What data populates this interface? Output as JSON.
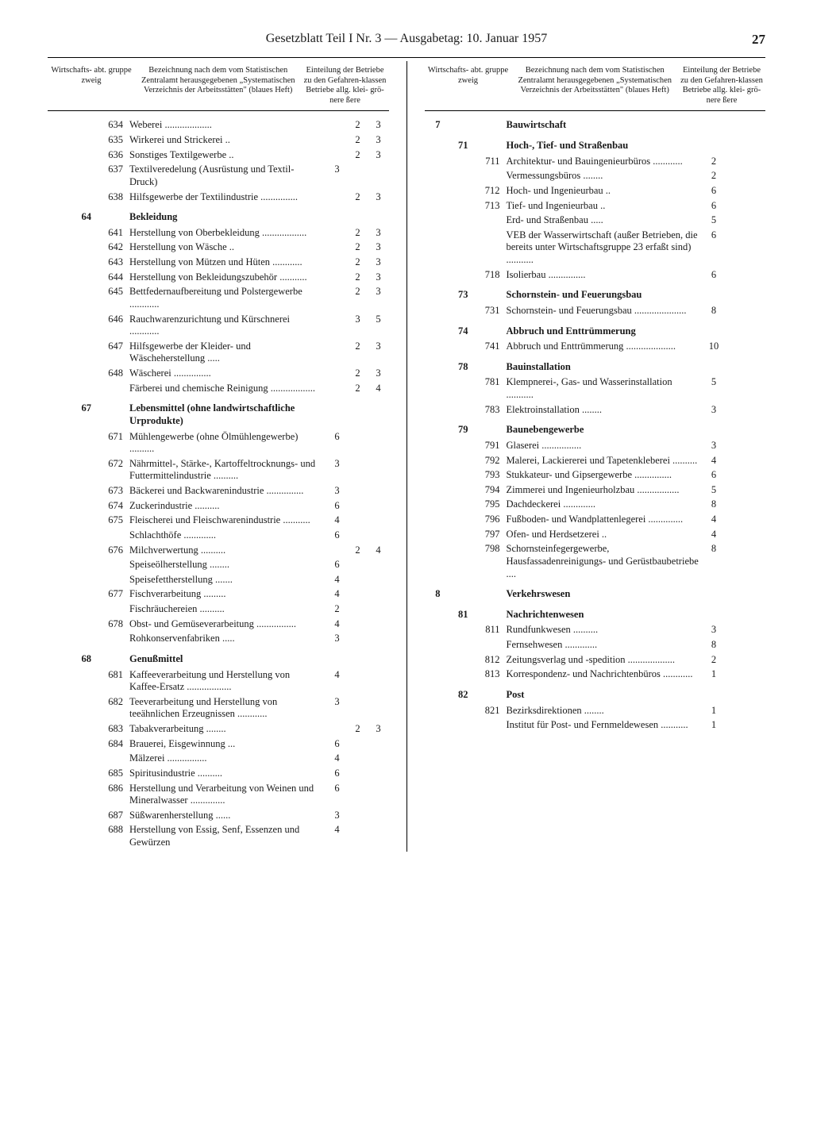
{
  "header": {
    "title": "Gesetzblatt Teil I Nr. 3 — Ausgabetag: 10. Januar 1957",
    "page_number": "27"
  },
  "column_headers": {
    "code": "Wirtschafts-\nabt. gruppe zweig",
    "desc": "Bezeichnung nach dem vom Statistischen Zentralamt herausgegebenen „Systematischen Verzeichnis der Arbeitsstätten\" (blaues Heft)",
    "class": "Einteilung der Betriebe zu den Gefahren-klassen Betriebe allg. klei- grö-nere ßere"
  },
  "left_rows": [
    {
      "abt": "",
      "grp": "",
      "zwg": "634",
      "desc": "Weberei ...................",
      "v1": "",
      "v2": "2",
      "v3": "3"
    },
    {
      "abt": "",
      "grp": "",
      "zwg": "635",
      "desc": "Wirkerei und Strickerei ..",
      "v1": "",
      "v2": "2",
      "v3": "3"
    },
    {
      "abt": "",
      "grp": "",
      "zwg": "636",
      "desc": "Sonstiges Textilgewerbe ..",
      "v1": "",
      "v2": "2",
      "v3": "3"
    },
    {
      "abt": "",
      "grp": "",
      "zwg": "637",
      "desc": "Textilveredelung (Ausrüstung und Textil-Druck)",
      "v1": "3",
      "v2": "",
      "v3": ""
    },
    {
      "abt": "",
      "grp": "",
      "zwg": "638",
      "desc": "Hilfsgewerbe der Textilindustrie ...............",
      "v1": "",
      "v2": "2",
      "v3": "3"
    },
    {
      "abt": "",
      "grp": "64",
      "zwg": "",
      "desc": "Bekleidung",
      "bold": true
    },
    {
      "abt": "",
      "grp": "",
      "zwg": "641",
      "desc": "Herstellung von Oberbekleidung ..................",
      "v1": "",
      "v2": "2",
      "v3": "3"
    },
    {
      "abt": "",
      "grp": "",
      "zwg": "642",
      "desc": "Herstellung von Wäsche ..",
      "v1": "",
      "v2": "2",
      "v3": "3"
    },
    {
      "abt": "",
      "grp": "",
      "zwg": "643",
      "desc": "Herstellung von Mützen und Hüten ............",
      "v1": "",
      "v2": "2",
      "v3": "3"
    },
    {
      "abt": "",
      "grp": "",
      "zwg": "644",
      "desc": "Herstellung von Bekleidungszubehör ...........",
      "v1": "",
      "v2": "2",
      "v3": "3"
    },
    {
      "abt": "",
      "grp": "",
      "zwg": "645",
      "desc": "Bettfedernaufbereitung und Polstergewerbe ............",
      "v1": "",
      "v2": "2",
      "v3": "3"
    },
    {
      "abt": "",
      "grp": "",
      "zwg": "646",
      "desc": "Rauchwarenzurichtung und Kürschnerei ............",
      "v1": "",
      "v2": "3",
      "v3": "5"
    },
    {
      "abt": "",
      "grp": "",
      "zwg": "647",
      "desc": "Hilfsgewerbe der Kleider- und Wäscheherstellung .....",
      "v1": "",
      "v2": "2",
      "v3": "3"
    },
    {
      "abt": "",
      "grp": "",
      "zwg": "648",
      "desc": "Wäscherei ...............",
      "v1": "",
      "v2": "2",
      "v3": "3"
    },
    {
      "abt": "",
      "grp": "",
      "zwg": "",
      "desc": "Färberei und chemische Reinigung ..................",
      "v1": "",
      "v2": "2",
      "v3": "4"
    },
    {
      "abt": "",
      "grp": "67",
      "zwg": "",
      "desc": "Lebensmittel (ohne landwirtschaftliche Urprodukte)",
      "bold": true
    },
    {
      "abt": "",
      "grp": "",
      "zwg": "671",
      "desc": "Mühlengewerbe (ohne Ölmühlengewerbe) ..........",
      "v1": "6",
      "v2": "",
      "v3": ""
    },
    {
      "abt": "",
      "grp": "",
      "zwg": "672",
      "desc": "Nährmittel-, Stärke-, Kartoffeltrocknungs- und Futtermittelindustrie ..........",
      "v1": "3",
      "v2": "",
      "v3": ""
    },
    {
      "abt": "",
      "grp": "",
      "zwg": "673",
      "desc": "Bäckerei und Backwarenindustrie ...............",
      "v1": "3",
      "v2": "",
      "v3": ""
    },
    {
      "abt": "",
      "grp": "",
      "zwg": "674",
      "desc": "Zuckerindustrie ..........",
      "v1": "6",
      "v2": "",
      "v3": ""
    },
    {
      "abt": "",
      "grp": "",
      "zwg": "675",
      "desc": "Fleischerei und Fleischwarenindustrie ...........",
      "v1": "4",
      "v2": "",
      "v3": ""
    },
    {
      "abt": "",
      "grp": "",
      "zwg": "",
      "desc": "Schlachthöfe .............",
      "v1": "6",
      "v2": "",
      "v3": ""
    },
    {
      "abt": "",
      "grp": "",
      "zwg": "676",
      "desc": "Milchverwertung ..........",
      "v1": "",
      "v2": "2",
      "v3": "4"
    },
    {
      "abt": "",
      "grp": "",
      "zwg": "",
      "desc": "Speiseölherstellung ........",
      "v1": "6",
      "v2": "",
      "v3": ""
    },
    {
      "abt": "",
      "grp": "",
      "zwg": "",
      "desc": "Speisefettherstellung .......",
      "v1": "4",
      "v2": "",
      "v3": ""
    },
    {
      "abt": "",
      "grp": "",
      "zwg": "677",
      "desc": "Fischverarbeitung .........",
      "v1": "4",
      "v2": "",
      "v3": ""
    },
    {
      "abt": "",
      "grp": "",
      "zwg": "",
      "desc": "Fischräuchereien ..........",
      "v1": "2",
      "v2": "",
      "v3": ""
    },
    {
      "abt": "",
      "grp": "",
      "zwg": "678",
      "desc": "Obst- und Gemüseverarbeitung ................",
      "v1": "4",
      "v2": "",
      "v3": ""
    },
    {
      "abt": "",
      "grp": "",
      "zwg": "",
      "desc": "Rohkonservenfabriken .....",
      "v1": "3",
      "v2": "",
      "v3": ""
    },
    {
      "abt": "",
      "grp": "68",
      "zwg": "",
      "desc": "Genußmittel",
      "bold": true
    },
    {
      "abt": "",
      "grp": "",
      "zwg": "681",
      "desc": "Kaffeeverarbeitung und Herstellung von Kaffee-Ersatz ..................",
      "v1": "4",
      "v2": "",
      "v3": ""
    },
    {
      "abt": "",
      "grp": "",
      "zwg": "682",
      "desc": "Teeverarbeitung und Herstellung von teeähnlichen Erzeugnissen ............",
      "v1": "3",
      "v2": "",
      "v3": ""
    },
    {
      "abt": "",
      "grp": "",
      "zwg": "683",
      "desc": "Tabakverarbeitung ........",
      "v1": "",
      "v2": "2",
      "v3": "3"
    },
    {
      "abt": "",
      "grp": "",
      "zwg": "684",
      "desc": "Brauerei, Eisgewinnung ...",
      "v1": "6",
      "v2": "",
      "v3": ""
    },
    {
      "abt": "",
      "grp": "",
      "zwg": "",
      "desc": "Mälzerei ................",
      "v1": "4",
      "v2": "",
      "v3": ""
    },
    {
      "abt": "",
      "grp": "",
      "zwg": "685",
      "desc": "Spiritusindustrie ..........",
      "v1": "6",
      "v2": "",
      "v3": ""
    },
    {
      "abt": "",
      "grp": "",
      "zwg": "686",
      "desc": "Herstellung und Verarbeitung von Weinen und Mineralwasser ..............",
      "v1": "6",
      "v2": "",
      "v3": ""
    },
    {
      "abt": "",
      "grp": "",
      "zwg": "687",
      "desc": "Süßwarenherstellung ......",
      "v1": "3",
      "v2": "",
      "v3": ""
    },
    {
      "abt": "",
      "grp": "",
      "zwg": "688",
      "desc": "Herstellung von Essig, Senf, Essenzen und Gewürzen",
      "v1": "4",
      "v2": "",
      "v3": ""
    }
  ],
  "right_rows": [
    {
      "abt": "7",
      "grp": "",
      "zwg": "",
      "desc": "Bauwirtschaft",
      "bold": true
    },
    {
      "abt": "",
      "grp": "71",
      "zwg": "",
      "desc": "Hoch-, Tief- und Straßenbau",
      "bold": true
    },
    {
      "abt": "",
      "grp": "",
      "zwg": "711",
      "desc": "Architektur- und Bauingenieurbüros ............",
      "v1": "2",
      "v2": "",
      "v3": ""
    },
    {
      "abt": "",
      "grp": "",
      "zwg": "",
      "desc": "Vermessungsbüros ........",
      "v1": "2",
      "v2": "",
      "v3": ""
    },
    {
      "abt": "",
      "grp": "",
      "zwg": "712",
      "desc": "Hoch- und Ingenieurbau ..",
      "v1": "6",
      "v2": "",
      "v3": ""
    },
    {
      "abt": "",
      "grp": "",
      "zwg": "713",
      "desc": "Tief- und Ingenieurbau ..",
      "v1": "6",
      "v2": "",
      "v3": ""
    },
    {
      "abt": "",
      "grp": "",
      "zwg": "",
      "desc": "Erd- und Straßenbau .....",
      "v1": "5",
      "v2": "",
      "v3": ""
    },
    {
      "abt": "",
      "grp": "",
      "zwg": "",
      "desc": "VEB der Wasserwirtschaft (außer Betrieben, die bereits unter Wirtschaftsgruppe 23 erfaßt sind) ...........",
      "v1": "6",
      "v2": "",
      "v3": ""
    },
    {
      "abt": "",
      "grp": "",
      "zwg": "718",
      "desc": "Isolierbau ...............",
      "v1": "6",
      "v2": "",
      "v3": ""
    },
    {
      "abt": "",
      "grp": "73",
      "zwg": "",
      "desc": "Schornstein- und Feuerungsbau",
      "bold": true
    },
    {
      "abt": "",
      "grp": "",
      "zwg": "731",
      "desc": "Schornstein- und Feuerungsbau .....................",
      "v1": "8",
      "v2": "",
      "v3": ""
    },
    {
      "abt": "",
      "grp": "74",
      "zwg": "",
      "desc": "Abbruch und Enttrümmerung",
      "bold": true
    },
    {
      "abt": "",
      "grp": "",
      "zwg": "741",
      "desc": "Abbruch und Enttrümmerung ....................",
      "v1": "10",
      "v2": "",
      "v3": ""
    },
    {
      "abt": "",
      "grp": "78",
      "zwg": "",
      "desc": "Bauinstallation",
      "bold": true
    },
    {
      "abt": "",
      "grp": "",
      "zwg": "781",
      "desc": "Klempnerei-, Gas- und Wasserinstallation ...........",
      "v1": "5",
      "v2": "",
      "v3": ""
    },
    {
      "abt": "",
      "grp": "",
      "zwg": "783",
      "desc": "Elektroinstallation ........",
      "v1": "3",
      "v2": "",
      "v3": ""
    },
    {
      "abt": "",
      "grp": "79",
      "zwg": "",
      "desc": "Baunebengewerbe",
      "bold": true
    },
    {
      "abt": "",
      "grp": "",
      "zwg": "791",
      "desc": "Glaserei ................",
      "v1": "3",
      "v2": "",
      "v3": ""
    },
    {
      "abt": "",
      "grp": "",
      "zwg": "792",
      "desc": "Malerei, Lackiererei und Tapetenkleberei ..........",
      "v1": "4",
      "v2": "",
      "v3": ""
    },
    {
      "abt": "",
      "grp": "",
      "zwg": "793",
      "desc": "Stukkateur- und Gipsergewerbe ...............",
      "v1": "6",
      "v2": "",
      "v3": ""
    },
    {
      "abt": "",
      "grp": "",
      "zwg": "794",
      "desc": "Zimmerei und Ingenieurholzbau .................",
      "v1": "5",
      "v2": "",
      "v3": ""
    },
    {
      "abt": "",
      "grp": "",
      "zwg": "795",
      "desc": "Dachdeckerei .............",
      "v1": "8",
      "v2": "",
      "v3": ""
    },
    {
      "abt": "",
      "grp": "",
      "zwg": "796",
      "desc": "Fußboden- und Wandplattenlegerei ..............",
      "v1": "4",
      "v2": "",
      "v3": ""
    },
    {
      "abt": "",
      "grp": "",
      "zwg": "797",
      "desc": "Ofen- und Herdsetzerei ..",
      "v1": "4",
      "v2": "",
      "v3": ""
    },
    {
      "abt": "",
      "grp": "",
      "zwg": "798",
      "desc": "Schornsteinfegergewerbe, Hausfassadenreinigungs- und Gerüstbaubetriebe ....",
      "v1": "8",
      "v2": "",
      "v3": ""
    },
    {
      "abt": "8",
      "grp": "",
      "zwg": "",
      "desc": "Verkehrswesen",
      "bold": true
    },
    {
      "abt": "",
      "grp": "81",
      "zwg": "",
      "desc": "Nachrichtenwesen",
      "bold": true
    },
    {
      "abt": "",
      "grp": "",
      "zwg": "811",
      "desc": "Rundfunkwesen ..........",
      "v1": "3",
      "v2": "",
      "v3": ""
    },
    {
      "abt": "",
      "grp": "",
      "zwg": "",
      "desc": "Fernsehwesen .............",
      "v1": "8",
      "v2": "",
      "v3": ""
    },
    {
      "abt": "",
      "grp": "",
      "zwg": "812",
      "desc": "Zeitungsverlag und -spedition ...................",
      "v1": "2",
      "v2": "",
      "v3": ""
    },
    {
      "abt": "",
      "grp": "",
      "zwg": "813",
      "desc": "Korrespondenz- und Nachrichtenbüros ............",
      "v1": "1",
      "v2": "",
      "v3": ""
    },
    {
      "abt": "",
      "grp": "82",
      "zwg": "",
      "desc": "Post",
      "bold": true
    },
    {
      "abt": "",
      "grp": "",
      "zwg": "821",
      "desc": "Bezirksdirektionen ........",
      "v1": "1",
      "v2": "",
      "v3": ""
    },
    {
      "abt": "",
      "grp": "",
      "zwg": "",
      "desc": "Institut für Post- und Fernmeldewesen ...........",
      "v1": "1",
      "v2": "",
      "v3": ""
    }
  ]
}
